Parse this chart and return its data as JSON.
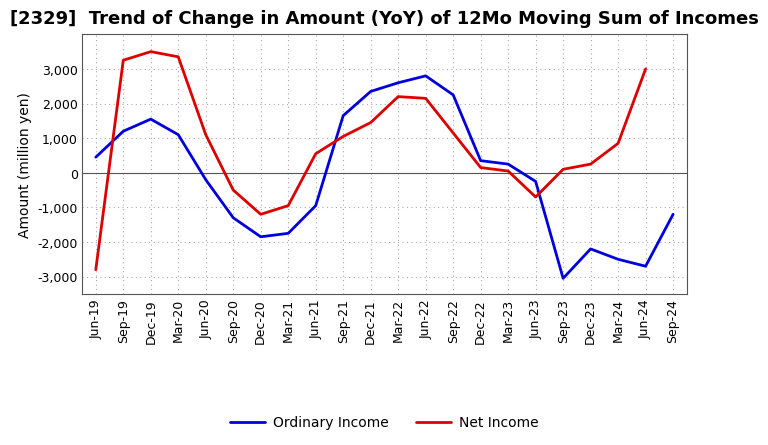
{
  "title": "[2329]  Trend of Change in Amount (YoY) of 12Mo Moving Sum of Incomes",
  "ylabel": "Amount (million yen)",
  "x_labels": [
    "Jun-19",
    "Sep-19",
    "Dec-19",
    "Mar-20",
    "Jun-20",
    "Sep-20",
    "Dec-20",
    "Mar-21",
    "Jun-21",
    "Sep-21",
    "Dec-21",
    "Mar-22",
    "Jun-22",
    "Sep-22",
    "Dec-22",
    "Mar-23",
    "Jun-23",
    "Sep-23",
    "Dec-23",
    "Mar-24",
    "Jun-24",
    "Sep-24"
  ],
  "ordinary_income": [
    450,
    1200,
    1550,
    1100,
    -200,
    -1300,
    -1850,
    -1750,
    -950,
    1650,
    2350,
    2600,
    2800,
    2250,
    350,
    250,
    -250,
    -3050,
    -2200,
    -2500,
    -2700,
    -1200
  ],
  "net_income": [
    -2800,
    3250,
    3500,
    3350,
    1100,
    -500,
    -1200,
    -950,
    550,
    1050,
    1450,
    2200,
    2150,
    1150,
    150,
    50,
    -700,
    100,
    250,
    850,
    3000,
    null
  ],
  "ordinary_income_color": "#0000dd",
  "net_income_color": "#dd0000",
  "ylim": [
    -3500,
    4000
  ],
  "yticks": [
    -3000,
    -2000,
    -1000,
    0,
    1000,
    2000,
    3000
  ],
  "grid_color": "#aaaaaa",
  "background_color": "#ffffff",
  "legend_labels": [
    "Ordinary Income",
    "Net Income"
  ],
  "title_fontsize": 13,
  "axis_label_fontsize": 10,
  "tick_fontsize": 9,
  "legend_fontsize": 10,
  "line_width": 2.0
}
